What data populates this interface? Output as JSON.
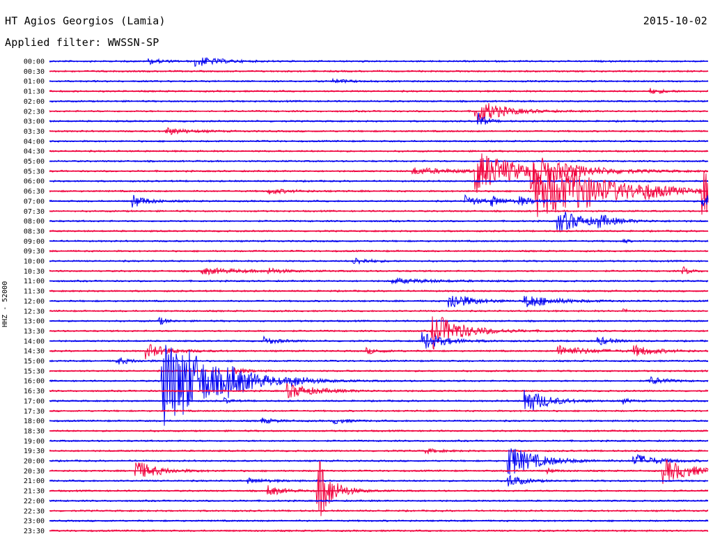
{
  "header": {
    "station": "HT Agios Georgios (Lamia)",
    "date": "2015-10-02",
    "filter": "Applied filter: WWSSN-SP",
    "channel": "HHZ - 52000"
  },
  "colors": {
    "blue": "#0000f0",
    "red": "#f0003c"
  },
  "chart_data": {
    "type": "line",
    "title": "HT Agios Georgios (Lamia)",
    "subtitle": "Applied filter: WWSSN-SP",
    "ylabel": "HHZ - 52000",
    "xlabel": "",
    "traces": [
      {
        "label": "00:00",
        "color": "blue",
        "events": [
          [
            0.22,
            1.2,
            0.03
          ],
          [
            0.15,
            0.6,
            0.02
          ]
        ]
      },
      {
        "label": "00:30",
        "color": "red",
        "events": []
      },
      {
        "label": "01:00",
        "color": "blue",
        "events": [
          [
            0.43,
            0.5,
            0.02
          ]
        ]
      },
      {
        "label": "01:30",
        "color": "red",
        "events": [
          [
            0.91,
            0.6,
            0.02
          ]
        ]
      },
      {
        "label": "02:00",
        "color": "blue",
        "events": []
      },
      {
        "label": "02:30",
        "color": "red",
        "events": [
          [
            0.645,
            3.0,
            0.035
          ]
        ]
      },
      {
        "label": "03:00",
        "color": "blue",
        "events": [
          [
            0.65,
            2.0,
            0.01
          ]
        ]
      },
      {
        "label": "03:30",
        "color": "red",
        "events": [
          [
            0.175,
            0.8,
            0.03
          ]
        ]
      },
      {
        "label": "04:00",
        "color": "blue",
        "events": []
      },
      {
        "label": "04:30",
        "color": "red",
        "events": []
      },
      {
        "label": "05:00",
        "color": "blue",
        "events": []
      },
      {
        "label": "05:30",
        "color": "red",
        "events": [
          [
            0.645,
            4.5,
            0.06
          ],
          [
            0.73,
            2.5,
            0.06
          ],
          [
            0.55,
            0.7,
            0.06
          ]
        ]
      },
      {
        "label": "06:00",
        "color": "blue",
        "events": []
      },
      {
        "label": "06:30",
        "color": "red",
        "events": [
          [
            0.735,
            6.0,
            0.09
          ],
          [
            0.79,
            1.5,
            0.05
          ],
          [
            0.9,
            1.0,
            0.02
          ],
          [
            0.99,
            6.0,
            0.03
          ],
          [
            0.33,
            0.6,
            0.03
          ]
        ]
      },
      {
        "label": "07:00",
        "color": "blue",
        "events": [
          [
            0.125,
            1.5,
            0.02
          ],
          [
            0.63,
            1.2,
            0.02
          ],
          [
            0.67,
            1.0,
            0.02
          ],
          [
            0.71,
            1.0,
            0.02
          ],
          [
            0.99,
            2.0,
            0.03
          ]
        ]
      },
      {
        "label": "07:30",
        "color": "red",
        "events": []
      },
      {
        "label": "08:00",
        "color": "blue",
        "events": [
          [
            0.77,
            2.5,
            0.04
          ],
          [
            0.83,
            1.2,
            0.02
          ]
        ]
      },
      {
        "label": "08:30",
        "color": "red",
        "events": []
      },
      {
        "label": "09:00",
        "color": "blue",
        "events": [
          [
            0.87,
            0.8,
            0.005
          ]
        ]
      },
      {
        "label": "09:30",
        "color": "red",
        "events": []
      },
      {
        "label": "10:00",
        "color": "blue",
        "events": [
          [
            0.46,
            0.8,
            0.02
          ]
        ]
      },
      {
        "label": "10:30",
        "color": "red",
        "events": [
          [
            0.23,
            0.7,
            0.05
          ],
          [
            0.33,
            0.6,
            0.02
          ],
          [
            0.96,
            1.0,
            0.01
          ]
        ]
      },
      {
        "label": "11:00",
        "color": "blue",
        "events": [
          [
            0.52,
            0.5,
            0.06
          ]
        ]
      },
      {
        "label": "11:30",
        "color": "red",
        "events": []
      },
      {
        "label": "12:00",
        "color": "blue",
        "events": [
          [
            0.605,
            2.0,
            0.03
          ],
          [
            0.72,
            1.5,
            0.04
          ]
        ]
      },
      {
        "label": "12:30",
        "color": "red",
        "events": [
          [
            0.87,
            0.8,
            0.005
          ]
        ]
      },
      {
        "label": "13:00",
        "color": "blue",
        "events": [
          [
            0.165,
            1.0,
            0.01
          ]
        ]
      },
      {
        "label": "13:30",
        "color": "red",
        "events": [
          [
            0.58,
            4.0,
            0.04
          ]
        ]
      },
      {
        "label": "14:00",
        "color": "blue",
        "events": [
          [
            0.565,
            2.0,
            0.03
          ],
          [
            0.325,
            0.8,
            0.02
          ],
          [
            0.83,
            1.0,
            0.02
          ]
        ]
      },
      {
        "label": "14:30",
        "color": "red",
        "events": [
          [
            0.145,
            1.6,
            0.03
          ],
          [
            0.77,
            1.2,
            0.04
          ],
          [
            0.885,
            1.2,
            0.03
          ],
          [
            0.48,
            0.6,
            0.02
          ]
        ]
      },
      {
        "label": "15:00",
        "color": "blue",
        "events": [
          [
            0.1,
            0.8,
            0.02
          ]
        ]
      },
      {
        "label": "15:30",
        "color": "red",
        "events": [
          [
            0.28,
            0.6,
            0.02
          ]
        ]
      },
      {
        "label": "16:00",
        "color": "blue",
        "events": [
          [
            0.17,
            11.0,
            0.05
          ],
          [
            0.2,
            2.0,
            0.06
          ],
          [
            0.27,
            1.5,
            0.04
          ],
          [
            0.365,
            1.0,
            0.02
          ],
          [
            0.91,
            1.0,
            0.02
          ]
        ]
      },
      {
        "label": "16:30",
        "color": "red",
        "events": [
          [
            0.36,
            1.5,
            0.04
          ]
        ]
      },
      {
        "label": "17:00",
        "color": "blue",
        "events": [
          [
            0.72,
            3.0,
            0.03
          ],
          [
            0.265,
            0.6,
            0.01
          ],
          [
            0.87,
            0.6,
            0.01
          ]
        ]
      },
      {
        "label": "17:30",
        "color": "red",
        "events": []
      },
      {
        "label": "18:00",
        "color": "blue",
        "events": [
          [
            0.32,
            0.6,
            0.02
          ],
          [
            0.43,
            0.6,
            0.02
          ]
        ]
      },
      {
        "label": "18:30",
        "color": "red",
        "events": []
      },
      {
        "label": "19:00",
        "color": "blue",
        "events": []
      },
      {
        "label": "19:30",
        "color": "red",
        "events": [
          [
            0.57,
            0.5,
            0.02
          ]
        ]
      },
      {
        "label": "20:00",
        "color": "blue",
        "events": [
          [
            0.695,
            3.5,
            0.04
          ],
          [
            0.885,
            1.6,
            0.03
          ]
        ]
      },
      {
        "label": "20:30",
        "color": "red",
        "events": [
          [
            0.13,
            2.2,
            0.03
          ],
          [
            0.93,
            2.6,
            0.04
          ],
          [
            0.755,
            0.6,
            0.01
          ]
        ]
      },
      {
        "label": "21:00",
        "color": "blue",
        "events": [
          [
            0.695,
            1.5,
            0.02
          ],
          [
            0.3,
            0.5,
            0.03
          ]
        ]
      },
      {
        "label": "21:30",
        "color": "red",
        "events": [
          [
            0.33,
            1.2,
            0.02
          ],
          [
            0.405,
            8.0,
            0.02
          ]
        ]
      },
      {
        "label": "22:00",
        "color": "blue",
        "events": []
      },
      {
        "label": "22:30",
        "color": "red",
        "events": []
      },
      {
        "label": "23:00",
        "color": "blue",
        "events": []
      },
      {
        "label": "23:30",
        "color": "red",
        "events": []
      }
    ]
  }
}
